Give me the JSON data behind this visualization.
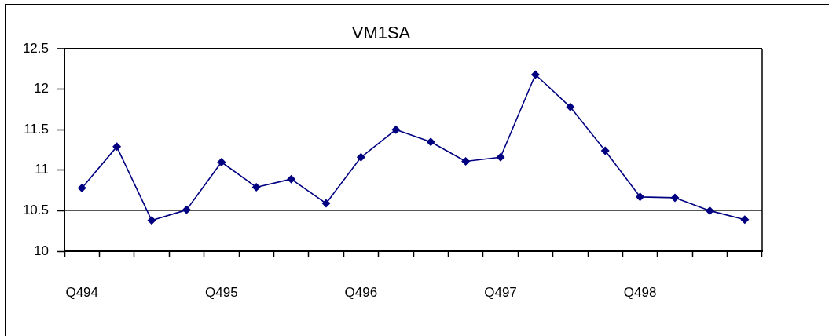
{
  "chart_data": {
    "type": "line",
    "title": "VM1SA",
    "categories": [
      "Q494",
      null,
      null,
      null,
      "Q495",
      null,
      null,
      null,
      "Q496",
      null,
      null,
      null,
      "Q497",
      null,
      null,
      null,
      "Q498",
      null,
      null,
      null
    ],
    "series": [
      {
        "color": "#000080",
        "values": [
          10.78,
          11.29,
          10.38,
          10.51,
          11.1,
          10.79,
          10.89,
          10.59,
          11.16,
          11.5,
          11.35,
          11.11,
          11.16,
          12.18,
          11.78,
          11.24,
          10.67,
          10.66,
          10.5,
          10.39
        ]
      }
    ],
    "ylim": [
      10,
      12.5
    ],
    "yticks": [
      10,
      10.5,
      11,
      11.5,
      12,
      12.5
    ],
    "grid": "y",
    "marker": "diamond",
    "line_style": "solid"
  }
}
